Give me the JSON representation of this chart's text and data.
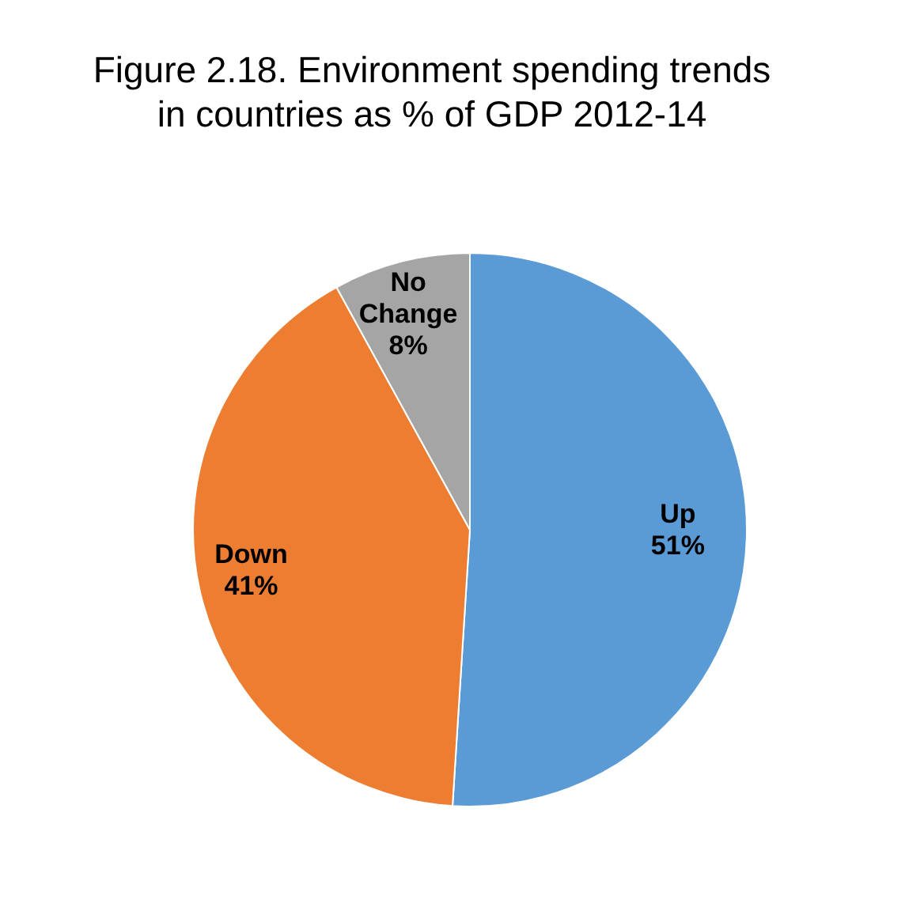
{
  "chart_data": {
    "type": "pie",
    "title": "Figure 2.18. Environment spending trends in countries as % of GDP 2012-14",
    "categories": [
      "Up",
      "Down",
      "No Change"
    ],
    "values": [
      51,
      41,
      8
    ],
    "colors": [
      "#5b9bd5",
      "#ed7d31",
      "#a5a5a5"
    ],
    "value_labels": [
      "51%",
      "41%",
      "8%"
    ],
    "legend": false
  }
}
